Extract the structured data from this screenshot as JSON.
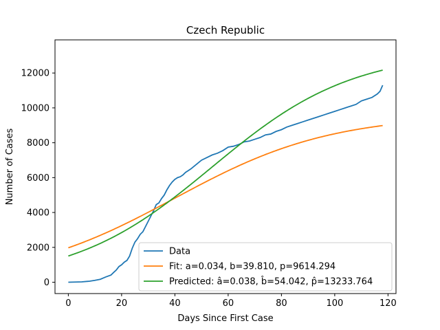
{
  "chart_data": {
    "type": "line",
    "title": "Czech Republic",
    "xlabel": "Days Since First Case",
    "ylabel": "Number of Cases",
    "xlim": [
      -5,
      123
    ],
    "ylim": [
      -650,
      13900
    ],
    "xticks": [
      0,
      20,
      40,
      60,
      80,
      100,
      120
    ],
    "yticks": [
      0,
      2000,
      4000,
      6000,
      8000,
      10000,
      12000
    ],
    "grid": false,
    "legend_position": "lower-right",
    "series": [
      {
        "name": "Data",
        "color": "#1f77b4",
        "x": [
          0,
          5,
          8,
          10,
          12,
          14,
          16,
          17,
          18,
          19,
          20,
          21,
          22,
          23,
          24,
          25,
          26,
          27,
          28,
          29,
          30,
          31,
          32,
          33,
          34,
          35,
          36,
          37,
          38,
          39,
          40,
          41,
          42,
          43,
          44,
          45,
          46,
          48,
          50,
          52,
          54,
          56,
          58,
          60,
          62,
          64,
          66,
          68,
          70,
          72,
          74,
          76,
          78,
          80,
          82,
          84,
          86,
          88,
          90,
          92,
          94,
          96,
          98,
          100,
          102,
          104,
          106,
          108,
          110,
          111,
          112,
          114,
          116,
          117,
          118
        ],
        "y": [
          0,
          20,
          60,
          110,
          170,
          300,
          410,
          560,
          700,
          900,
          1000,
          1150,
          1250,
          1500,
          1950,
          2300,
          2500,
          2750,
          2900,
          3200,
          3500,
          3800,
          4100,
          4450,
          4550,
          4800,
          5000,
          5300,
          5550,
          5750,
          5900,
          6000,
          6050,
          6150,
          6300,
          6400,
          6500,
          6750,
          7000,
          7150,
          7300,
          7400,
          7550,
          7750,
          7800,
          7900,
          8050,
          8100,
          8200,
          8300,
          8450,
          8500,
          8650,
          8750,
          8900,
          9000,
          9100,
          9200,
          9300,
          9400,
          9500,
          9600,
          9700,
          9800,
          9900,
          10000,
          10100,
          10200,
          10400,
          10450,
          10500,
          10600,
          10800,
          10950,
          11300
        ]
      },
      {
        "name": "Fit: a=0.034, b=39.810, p=9614.294",
        "color": "#ff7f0e",
        "model": "logistic",
        "a": 0.034,
        "b": 39.81,
        "p": 9614.294,
        "x_range": [
          0,
          118
        ]
      },
      {
        "name": "Predicted: â=0.038, b̂=54.042, p̂=13233.764",
        "color": "#2ca02c",
        "model": "logistic",
        "a": 0.038,
        "b": 54.042,
        "p": 13233.764,
        "x_range": [
          0,
          118
        ]
      }
    ]
  }
}
